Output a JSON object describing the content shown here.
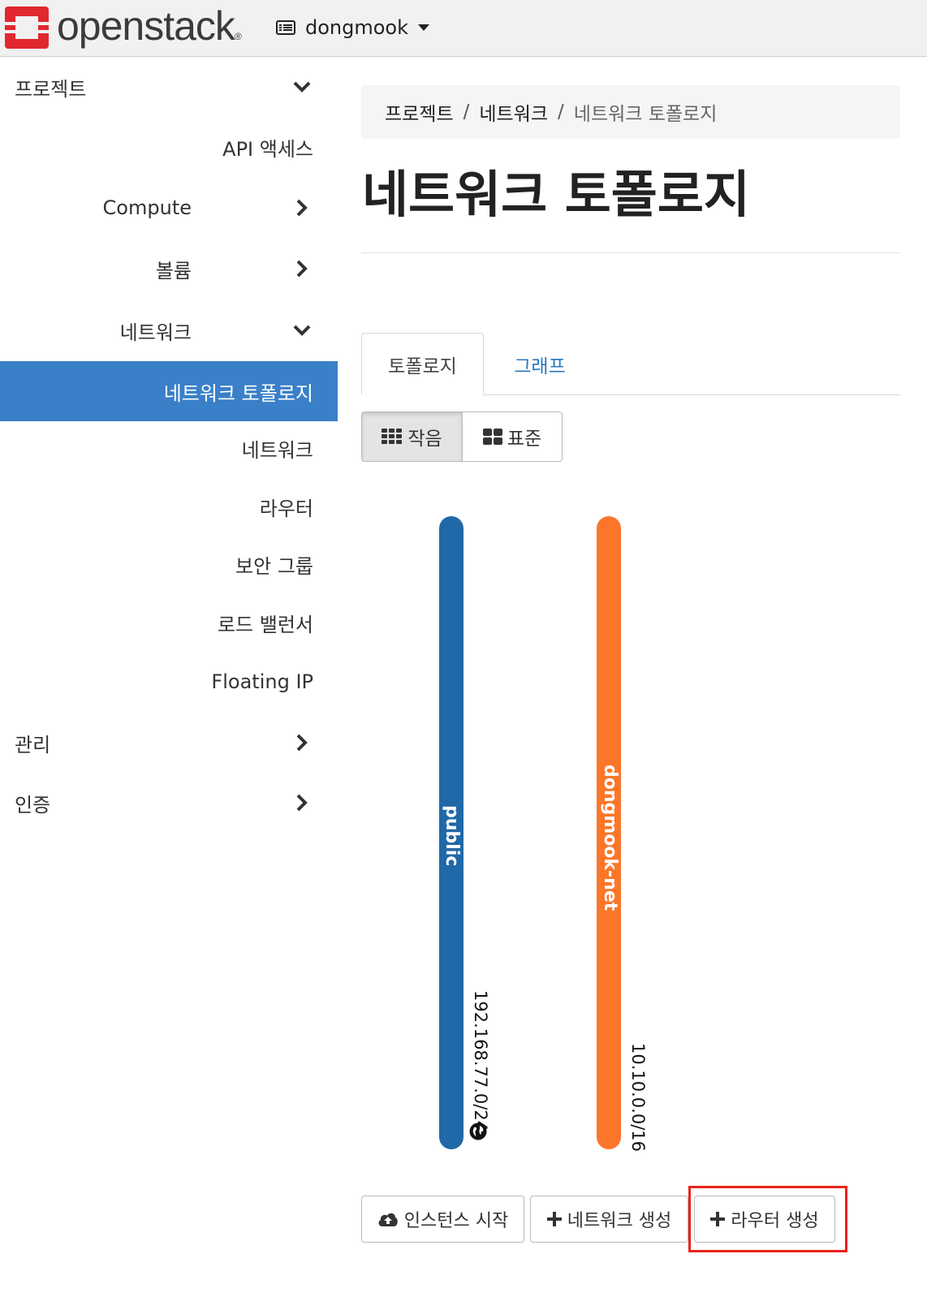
{
  "brand": {
    "name": "openstack",
    "reg_mark": "®",
    "brand_color": "#e0282e"
  },
  "header": {
    "project_name": "dongmook"
  },
  "sidebar": {
    "items": [
      {
        "label": "프로젝트",
        "icon": "chevron-down-icon"
      },
      {
        "label": "API 액세스"
      },
      {
        "label": "Compute",
        "icon": "chevron-right-icon"
      },
      {
        "label": "볼륨",
        "icon": "chevron-right-icon"
      },
      {
        "label": "네트워크",
        "icon": "chevron-down-icon"
      },
      {
        "label": "네트워크 토폴로지",
        "active": true
      },
      {
        "label": "네트워크"
      },
      {
        "label": "라우터"
      },
      {
        "label": "보안 그룹"
      },
      {
        "label": "로드 밸런서"
      },
      {
        "label": "Floating IP"
      },
      {
        "label": "관리",
        "icon": "chevron-right-icon"
      },
      {
        "label": "인증",
        "icon": "chevron-right-icon"
      }
    ],
    "active_color": "#3a80c8"
  },
  "breadcrumb": [
    "프로젝트",
    "네트워크",
    "네트워크 토폴로지"
  ],
  "page": {
    "title": "네트워크 토폴로지"
  },
  "tabs": [
    {
      "label": "토폴로지",
      "active": true
    },
    {
      "label": "그래프",
      "active": false
    }
  ],
  "view_toggle": [
    {
      "label": "작음",
      "icon": "grid-small-icon",
      "pressed": true
    },
    {
      "label": "표준",
      "icon": "grid-large-icon",
      "pressed": false
    }
  ],
  "networks": [
    {
      "name": "public",
      "cidr": "192.168.77.0/24",
      "color": "#2068a8",
      "external": true
    },
    {
      "name": "dongmook-net",
      "cidr": "10.10.0.0/16",
      "color": "#fb7628",
      "external": false
    }
  ],
  "actions": [
    {
      "label": "인스턴스 시작",
      "icon": "cloud-upload-icon"
    },
    {
      "label": "네트워크 생성",
      "icon": "plus-icon"
    },
    {
      "label": "라우터 생성",
      "icon": "plus-icon",
      "highlighted": true
    }
  ],
  "highlight_color": "#e8231b"
}
